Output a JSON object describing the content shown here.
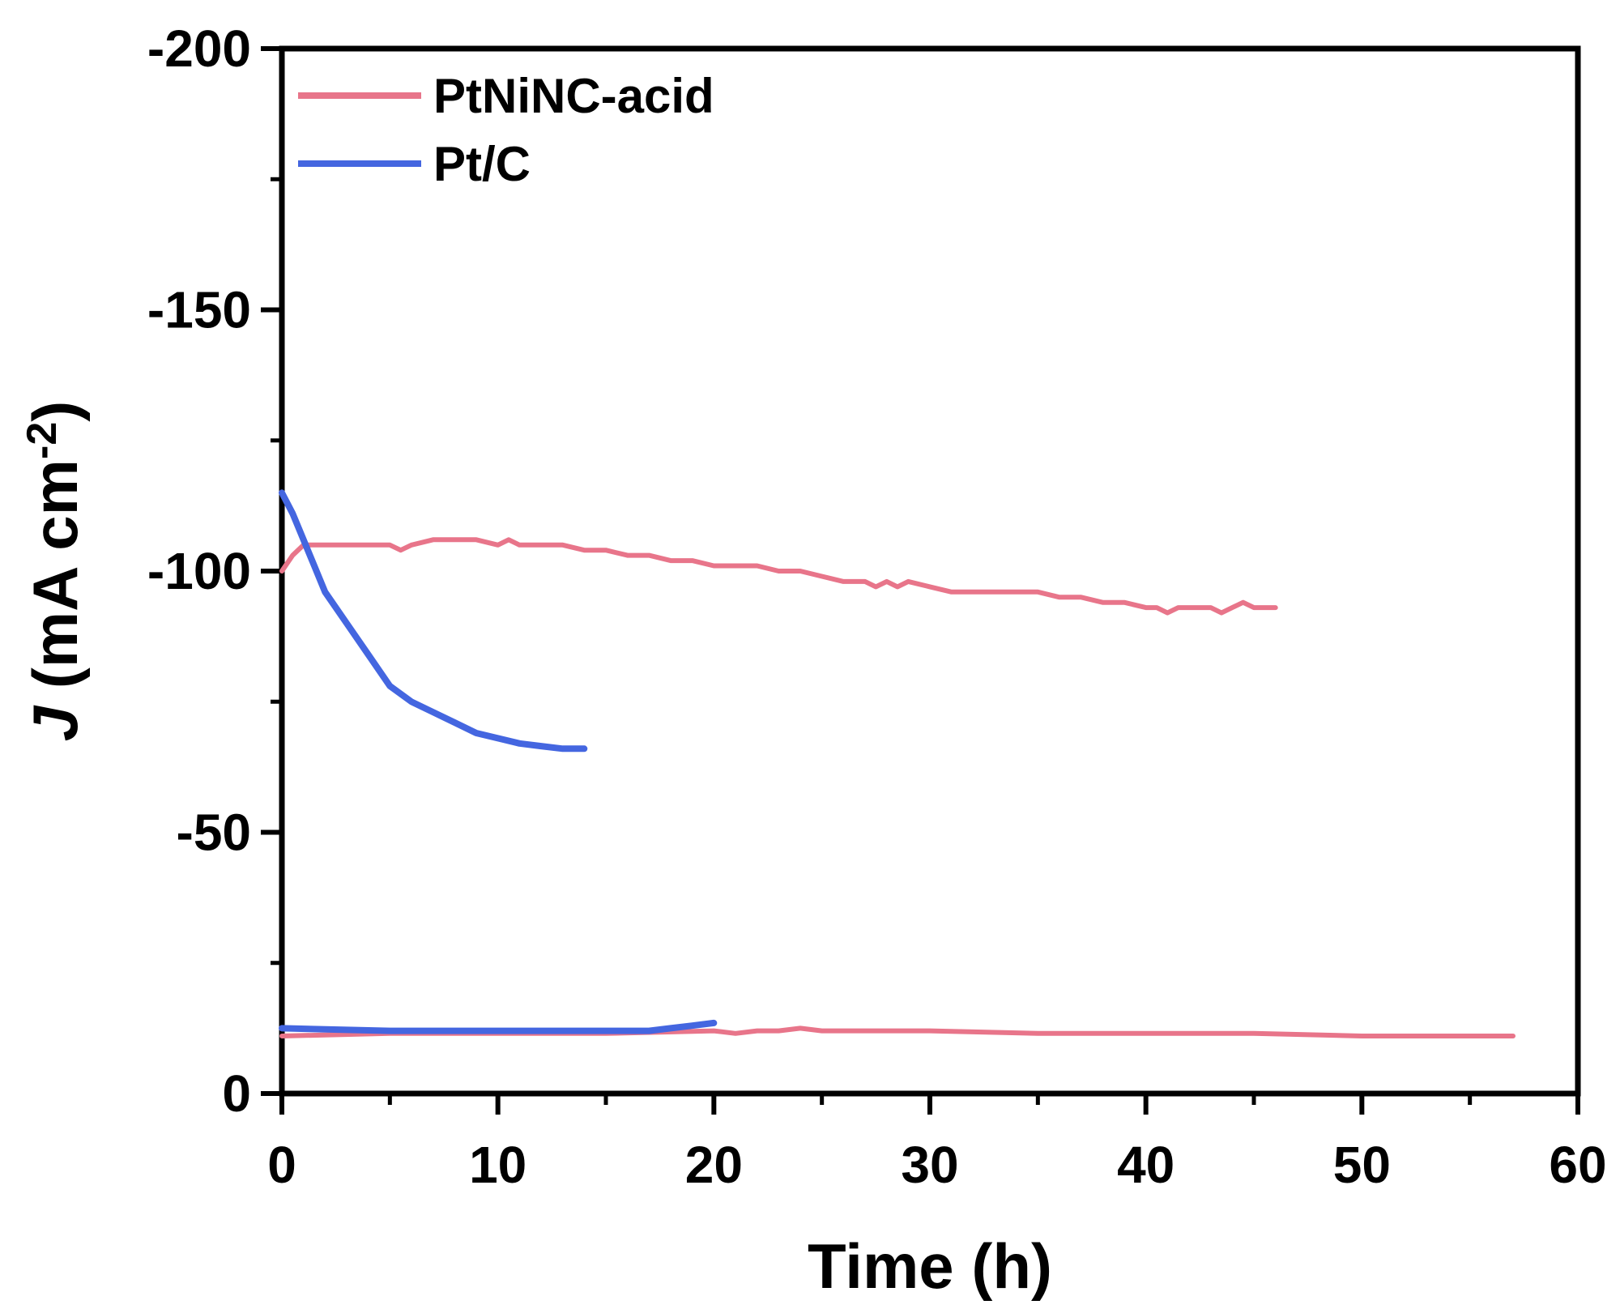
{
  "chart_data": {
    "type": "line",
    "xlabel": "Time (h)",
    "ylabel_main": "J (mA cm",
    "ylabel_italic": "J",
    "ylabel_rest": " (mA cm",
    "ylabel_sup": "-2",
    "ylabel_close": ")",
    "xlim": [
      0,
      60
    ],
    "ylim": [
      0,
      -200
    ],
    "x_ticks": [
      0,
      10,
      20,
      30,
      40,
      50,
      60
    ],
    "x_tick_labels": [
      "0",
      "10",
      "20",
      "30",
      "40",
      "50",
      "60"
    ],
    "y_ticks": [
      0,
      -50,
      -100,
      -150,
      -200
    ],
    "y_tick_labels": [
      "0",
      "-50",
      "-100",
      "-150",
      "-200"
    ],
    "legend_position": "top-left",
    "series": [
      {
        "name": "PtNiNC-acid",
        "color": "#e8758a",
        "segments": [
          {
            "x": [
              0,
              0.5,
              1,
              1.5,
              2,
              3,
              4,
              5,
              5.5,
              6,
              7,
              8,
              9,
              10,
              10.5,
              11,
              12,
              13,
              14,
              15,
              16,
              17,
              18,
              19,
              20,
              21,
              22,
              23,
              24,
              25,
              26,
              27,
              27.5,
              28,
              28.5,
              29,
              30,
              31,
              32,
              33,
              34,
              35,
              36,
              37,
              38,
              39,
              40,
              40.5,
              41,
              41.5,
              42,
              43,
              43.5,
              44,
              44.5,
              45,
              46
            ],
            "y": [
              -100,
              -103,
              -105,
              -105,
              -105,
              -105,
              -105,
              -105,
              -104,
              -105,
              -106,
              -106,
              -106,
              -105,
              -106,
              -105,
              -105,
              -105,
              -104,
              -104,
              -103,
              -103,
              -102,
              -102,
              -101,
              -101,
              -101,
              -100,
              -100,
              -99,
              -98,
              -98,
              -97,
              -98,
              -97,
              -98,
              -97,
              -96,
              -96,
              -96,
              -96,
              -96,
              -95,
              -95,
              -94,
              -94,
              -93,
              -93,
              -92,
              -93,
              -93,
              -93,
              -92,
              -93,
              -94,
              -93,
              -93
            ]
          },
          {
            "x": [
              0,
              5,
              10,
              15,
              20,
              21,
              22,
              23,
              24,
              25,
              30,
              35,
              40,
              45,
              50,
              55,
              57
            ],
            "y": [
              -11,
              -11.5,
              -11.5,
              -11.5,
              -12,
              -11.5,
              -12,
              -12,
              -12.5,
              -12,
              -12,
              -11.5,
              -11.5,
              -11.5,
              -11,
              -11,
              -11
            ]
          }
        ]
      },
      {
        "name": "Pt/C",
        "color": "#4466e0",
        "segments": [
          {
            "x": [
              0,
              0.5,
              1,
              1.5,
              2,
              3,
              4,
              5,
              6,
              7,
              8,
              9,
              10,
              11,
              12,
              13,
              14
            ],
            "y": [
              -115,
              -111,
              -106,
              -101,
              -96,
              -90,
              -84,
              -78,
              -75,
              -73,
              -71,
              -69,
              -68,
              -67,
              -66.5,
              -66,
              -66
            ]
          },
          {
            "x": [
              0,
              5,
              10,
              15,
              17,
              18,
              19,
              20
            ],
            "y": [
              -12.5,
              -12,
              -12,
              -12,
              -12,
              -12.5,
              -13,
              -13.5
            ]
          }
        ]
      }
    ]
  }
}
